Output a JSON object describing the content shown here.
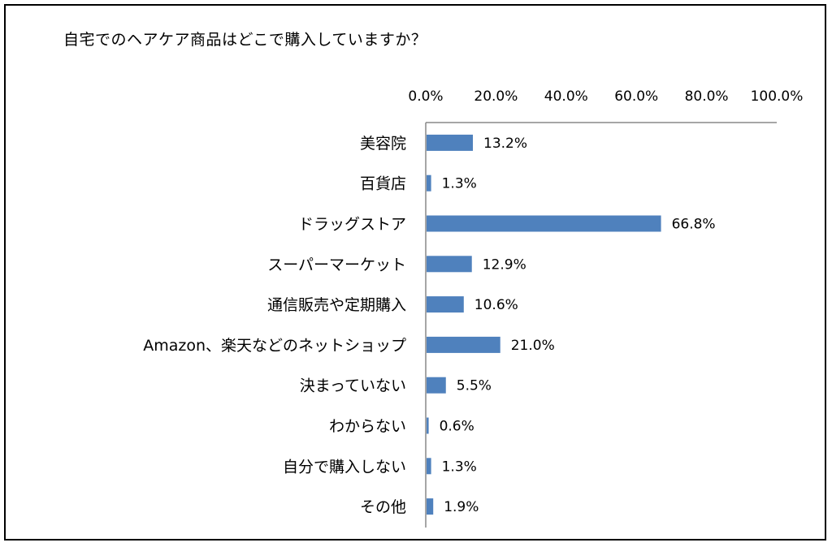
{
  "title": "自宅でのヘアケア商品はどこで購入していますか？",
  "chart_data": {
    "type": "bar",
    "orientation": "horizontal",
    "title": "自宅でのヘアケア商品はどこで購入していますか？",
    "xlim": [
      0,
      100
    ],
    "tick_labels": [
      "0.0%",
      "20.0%",
      "40.0%",
      "60.0%",
      "80.0%",
      "100.0%"
    ],
    "categories": [
      "美容院",
      "百貨店",
      "ドラッグストア",
      "スーパーマーケット",
      "通信販売や定期購入",
      "Amazon、楽天などのネットショップ",
      "決まっていない",
      "わからない",
      "自分で購入しない",
      "その他"
    ],
    "values": [
      13.2,
      1.3,
      66.8,
      12.9,
      10.6,
      21.0,
      5.5,
      0.6,
      1.3,
      1.9
    ],
    "value_labels": [
      "13.2%",
      "1.3%",
      "66.8%",
      "12.9%",
      "10.6%",
      "21.0%",
      "5.5%",
      "0.6%",
      "1.3%",
      "1.9%"
    ],
    "bar_color": "#4f81bd",
    "grid": false,
    "axis_position": "top"
  }
}
